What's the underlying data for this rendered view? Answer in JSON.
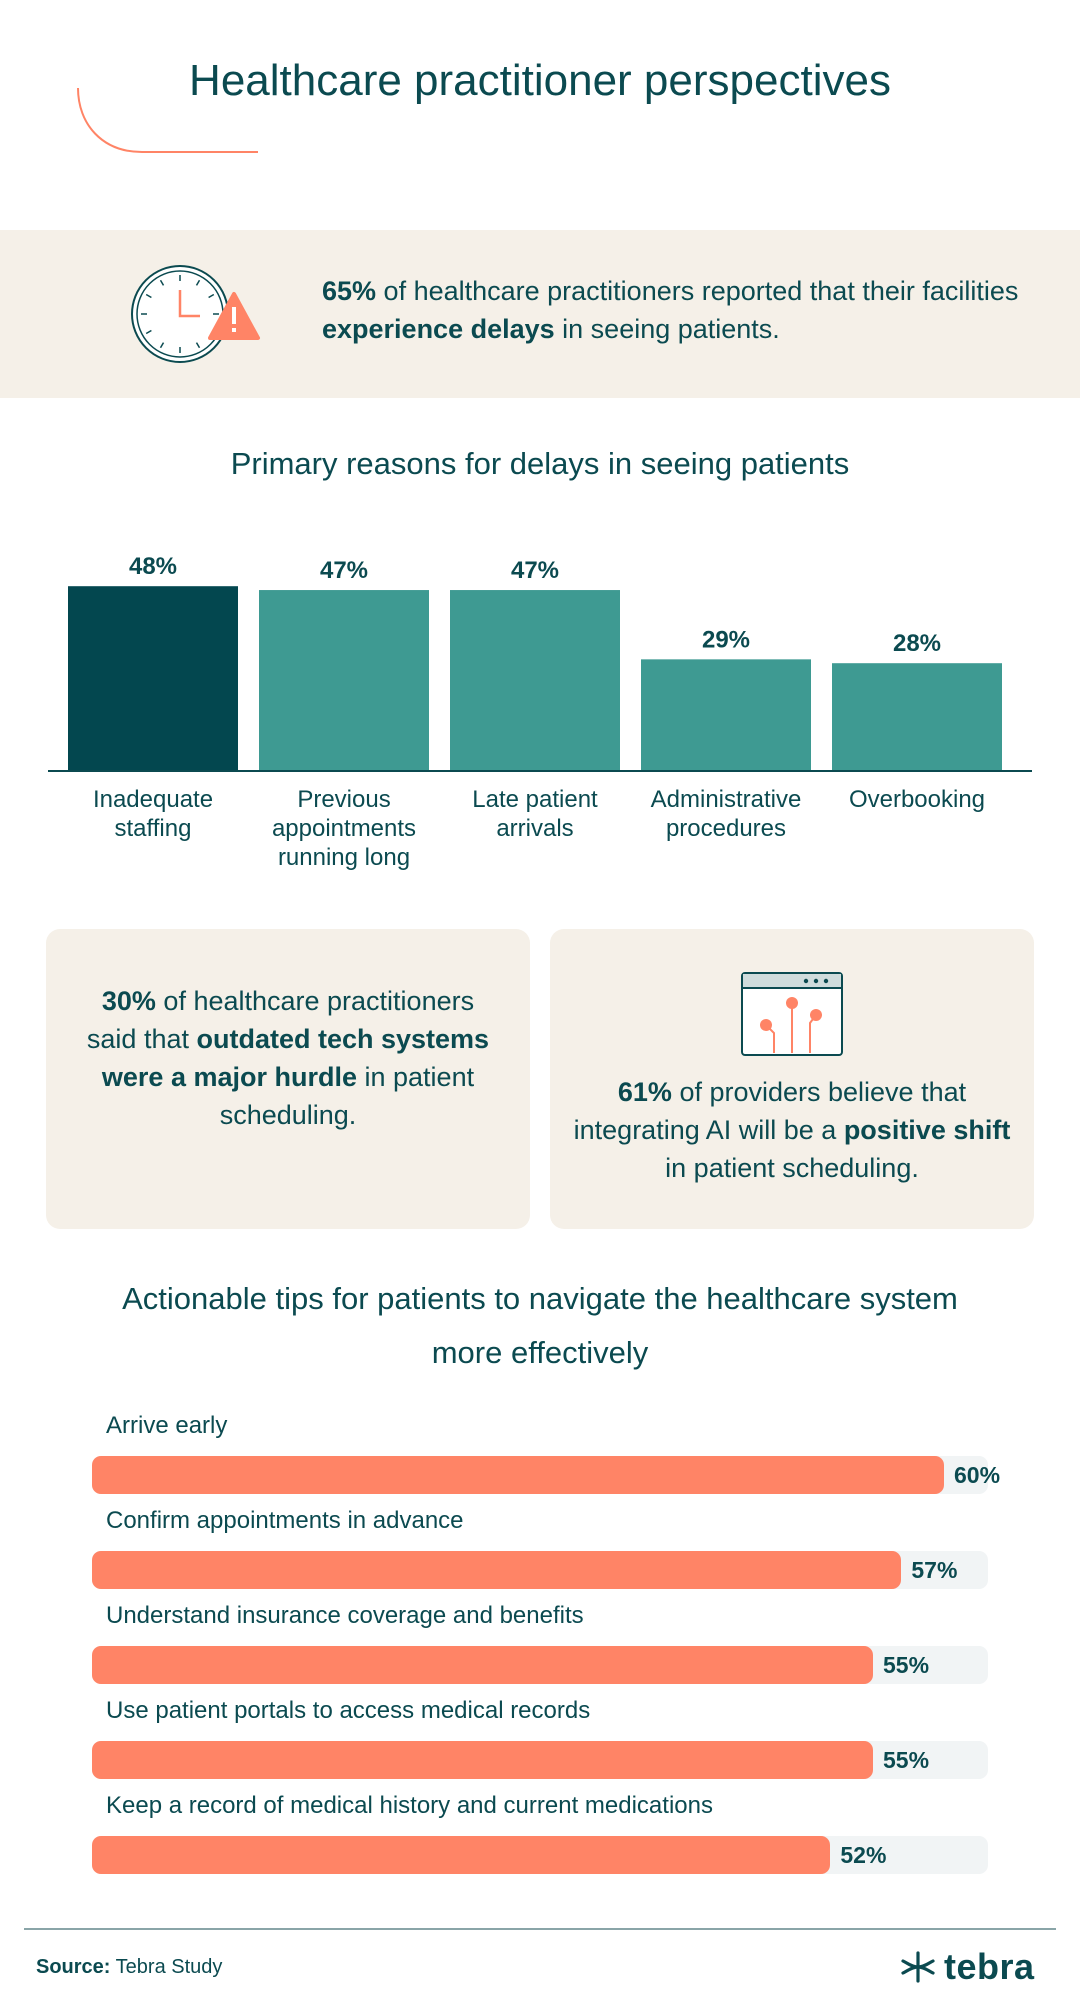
{
  "header": {
    "title": "Healthcare practitioner perspectives"
  },
  "callout": {
    "stat": "65%",
    "text_1": " of healthcare practitioners reported that their facilities ",
    "emphasis": "experience delays",
    "text_2": " in seeing patients.",
    "icon": "clock-warning-icon"
  },
  "chart_data": {
    "type": "bar",
    "title": "Primary reasons for delays in seeing patients",
    "categories": [
      "Inadequate staffing",
      "Previous appointments running long",
      "Late patient arrivals",
      "Administrative procedures",
      "Overbooking"
    ],
    "category_lines": [
      [
        "Inadequate",
        "staffing"
      ],
      [
        "Previous",
        "appointments",
        "running long"
      ],
      [
        "Late patient",
        "arrivals"
      ],
      [
        "Administrative",
        "procedures"
      ],
      [
        "Overbooking"
      ]
    ],
    "values": [
      48,
      47,
      47,
      29,
      28
    ],
    "value_labels": [
      "48%",
      "47%",
      "47%",
      "29%",
      "28%"
    ],
    "highlight_index": 0,
    "colors": {
      "highlight": "#03474f",
      "default": "#3e9a92",
      "highlight_label": "#0b4a50",
      "default_label": "#3e9a92"
    }
  },
  "cards": {
    "left": {
      "stat": "30%",
      "text_1": " of healthcare practitioners said that ",
      "emphasis": "outdated tech systems were a major hurdle",
      "text_2": " in patient scheduling."
    },
    "right": {
      "stat": "61%",
      "text_1": " of providers believe that integrating AI will be a ",
      "emphasis": "positive shift",
      "text_2": " in patient scheduling.",
      "icon": "ai-network-icon"
    }
  },
  "tips": {
    "title": "Actionable tips for patients to navigate the healthcare system more effectively",
    "chart_data": {
      "type": "bar",
      "orientation": "horizontal",
      "categories": [
        "Arrive early",
        "Confirm appointments in advance",
        "Understand insurance coverage and benefits",
        "Use patient portals to access medical records",
        "Keep a record of medical history and current medications"
      ],
      "values": [
        60,
        57,
        55,
        55,
        52
      ],
      "value_labels": [
        "60%",
        "57%",
        "55%",
        "55%",
        "52%"
      ],
      "colors": {
        "fill": "#ff8466",
        "track": "#f1f4f5"
      }
    }
  },
  "footer": {
    "source_label": "Source:",
    "source_value": " Tebra Study",
    "logo_text": "tebra",
    "logo_icon": "tebra-logo-icon"
  }
}
